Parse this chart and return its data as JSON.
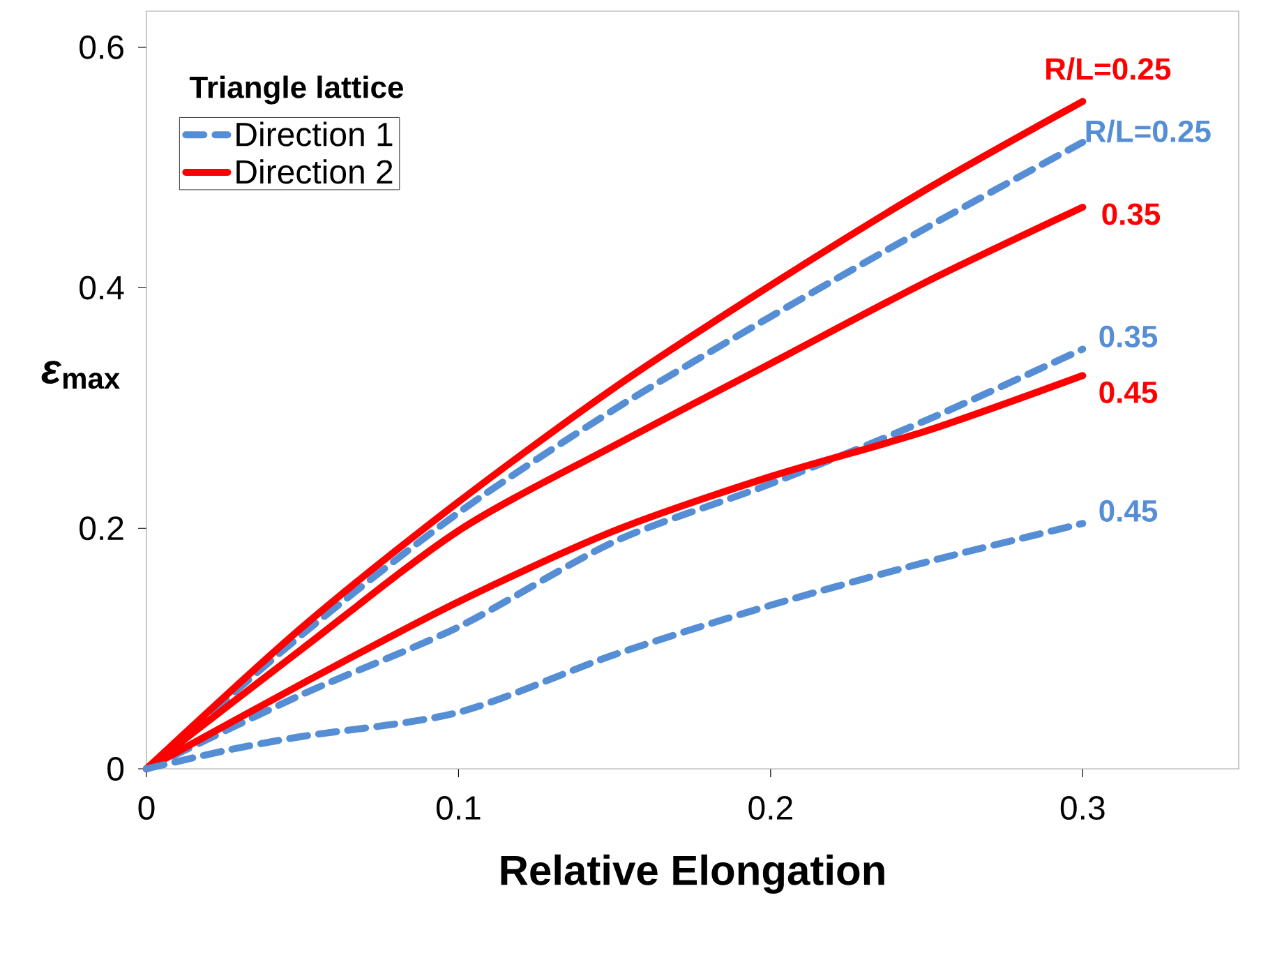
{
  "chart_data": {
    "type": "line",
    "xlabel": "Relative Elongation",
    "ylabel": "*ε*$_{max}$",
    "legend_title": "Triangle lattice",
    "x": [
      0,
      0.05,
      0.1,
      0.15,
      0.2,
      0.25,
      0.3
    ],
    "series": [
      {
        "name": "Direction 1",
        "color": "#558ed5",
        "line_style": "dashed",
        "values": [
          0,
          0.112,
          0.213,
          0.299,
          0.376,
          0.45,
          0.521
        ]
      },
      {
        "name": "Direction 2",
        "color": "#ff0000",
        "line_style": "solid",
        "values": [
          0,
          0.118,
          0.222,
          0.317,
          0.402,
          0.482,
          0.555
        ]
      },
      {
        "color": "#ff0000",
        "line_style": "solid",
        "values": [
          0,
          0.1,
          0.198,
          0.269,
          0.337,
          0.405,
          0.467
        ]
      },
      {
        "color": "#558ed5",
        "line_style": "dashed",
        "values": [
          0,
          0.062,
          0.118,
          0.189,
          0.237,
          0.29,
          0.349
        ]
      },
      {
        "color": "#ff0000",
        "line_style": "solid",
        "values": [
          0,
          0.071,
          0.139,
          0.198,
          0.243,
          0.281,
          0.327
        ]
      },
      {
        "color": "#558ed5",
        "line_style": "dashed",
        "x": [
          0,
          0.025,
          0.05,
          0.1,
          0.15,
          0.2,
          0.25,
          0.3
        ],
        "values": [
          0,
          0.015,
          0.027,
          0.047,
          0.095,
          0.136,
          0.172,
          0.204
        ]
      }
    ],
    "annotations": [
      "R/L=0.25",
      "R/L=0.25",
      "0.35",
      "0.35",
      "0.45",
      "0.45"
    ],
    "xlim": [
      0,
      0.35
    ],
    "ylim": [
      0,
      0.63
    ],
    "xticks": [
      0,
      0.1,
      0.2,
      0.3
    ],
    "yticks": [
      0,
      0.2,
      0.4,
      0.6
    ],
    "grid": false,
    "legend": "top left"
  }
}
